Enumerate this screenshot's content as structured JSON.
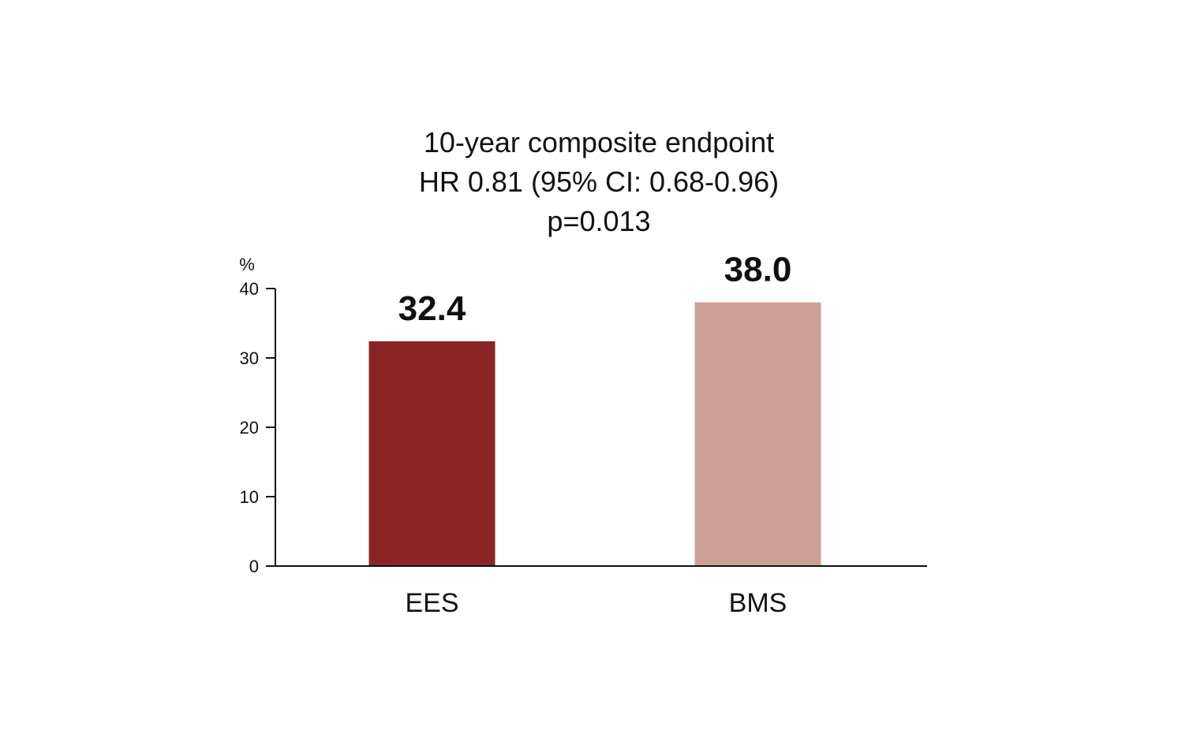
{
  "chart_data": {
    "type": "bar",
    "title_lines": [
      "10-year composite endpoint",
      "HR 0.81 (95% CI: 0.68-0.96)",
      "p=0.013"
    ],
    "ylabel": "%",
    "xlabel": "",
    "ylim": [
      0,
      40
    ],
    "yticks": [
      0,
      10,
      20,
      30,
      40
    ],
    "categories": [
      "EES",
      "BMS"
    ],
    "values": [
      32.4,
      38.0
    ],
    "data_labels": [
      "32.4",
      "38.0"
    ],
    "colors": [
      "#8b2525",
      "#cba097"
    ],
    "grid": false,
    "legend": "none"
  }
}
